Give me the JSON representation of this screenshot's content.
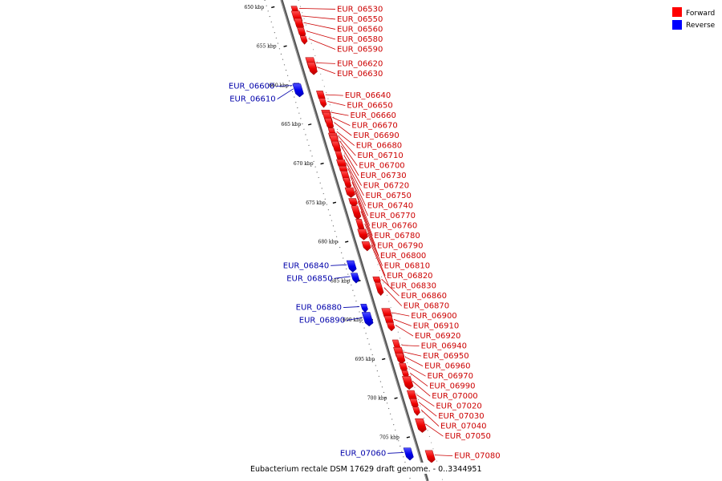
{
  "caption": "Eubacterium rectale DSM 17629 draft genome. - 0..3344951",
  "legend": [
    {
      "label": "Forward",
      "color": "#ff0000"
    },
    {
      "label": "Reverse",
      "color": "#0000ff"
    }
  ],
  "axis": {
    "unit": "kbp",
    "ticks": [
      {
        "label": "650 kbp",
        "pos": 650
      },
      {
        "label": "655 kbp",
        "pos": 655
      },
      {
        "label": "660 kbp",
        "pos": 660
      },
      {
        "label": "665 kbp",
        "pos": 665
      },
      {
        "label": "670 kbp",
        "pos": 670
      },
      {
        "label": "675 kbp",
        "pos": 675
      },
      {
        "label": "680 kbp",
        "pos": 680
      },
      {
        "label": "685 kbp",
        "pos": 685
      },
      {
        "label": "690 kbp",
        "pos": 690
      },
      {
        "label": "695 kbp",
        "pos": 695
      },
      {
        "label": "700 kbp",
        "pos": 700
      },
      {
        "label": "705 kbp",
        "pos": 705
      }
    ]
  },
  "genes": [
    {
      "name": "EUR_06530",
      "strand": "+",
      "pos": 650.6
    },
    {
      "name": "EUR_06550",
      "strand": "+",
      "pos": 651.5
    },
    {
      "name": "EUR_06560",
      "strand": "+",
      "pos": 652.3
    },
    {
      "name": "EUR_06580",
      "strand": "+",
      "pos": 653.3
    },
    {
      "name": "EUR_06590",
      "strand": "+",
      "pos": 654.2
    },
    {
      "name": "EUR_06620",
      "strand": "+",
      "pos": 657.1
    },
    {
      "name": "EUR_06630",
      "strand": "+",
      "pos": 657.6
    },
    {
      "name": "EUR_06600",
      "strand": "-",
      "pos": 659.8
    },
    {
      "name": "EUR_06610",
      "strand": "-",
      "pos": 660.2
    },
    {
      "name": "EUR_06640",
      "strand": "+",
      "pos": 660.9
    },
    {
      "name": "EUR_06650",
      "strand": "+",
      "pos": 661.7
    },
    {
      "name": "EUR_06660",
      "strand": "+",
      "pos": 663.0
    },
    {
      "name": "EUR_06670",
      "strand": "+",
      "pos": 663.6
    },
    {
      "name": "EUR_06690",
      "strand": "+",
      "pos": 664.2
    },
    {
      "name": "EUR_06680",
      "strand": "+",
      "pos": 665.3
    },
    {
      "name": "EUR_06710",
      "strand": "+",
      "pos": 665.8
    },
    {
      "name": "EUR_06700",
      "strand": "+",
      "pos": 666.4
    },
    {
      "name": "EUR_06730",
      "strand": "+",
      "pos": 667.0
    },
    {
      "name": "EUR_06720",
      "strand": "+",
      "pos": 668.1
    },
    {
      "name": "EUR_06750",
      "strand": "+",
      "pos": 669.0
    },
    {
      "name": "EUR_06740",
      "strand": "+",
      "pos": 669.7
    },
    {
      "name": "EUR_06770",
      "strand": "+",
      "pos": 670.6
    },
    {
      "name": "EUR_06760",
      "strand": "+",
      "pos": 671.3
    },
    {
      "name": "EUR_06780",
      "strand": "+",
      "pos": 672.4
    },
    {
      "name": "EUR_06790",
      "strand": "+",
      "pos": 673.6
    },
    {
      "name": "EUR_06800",
      "strand": "+",
      "pos": 674.8
    },
    {
      "name": "EUR_06810",
      "strand": "+",
      "pos": 676.3
    },
    {
      "name": "EUR_06820",
      "strand": "+",
      "pos": 677.4
    },
    {
      "name": "EUR_06830",
      "strand": "+",
      "pos": 678.8
    },
    {
      "name": "EUR_06840",
      "strand": "-",
      "pos": 681.2
    },
    {
      "name": "EUR_06850",
      "strand": "-",
      "pos": 682.6
    },
    {
      "name": "EUR_06860",
      "strand": "+",
      "pos": 682.9
    },
    {
      "name": "EUR_06870",
      "strand": "+",
      "pos": 683.9
    },
    {
      "name": "EUR_06880",
      "strand": "-",
      "pos": 686.2
    },
    {
      "name": "EUR_06890",
      "strand": "-",
      "pos": 687.5
    },
    {
      "name": "EUR_06900",
      "strand": "+",
      "pos": 686.9
    },
    {
      "name": "EUR_06910",
      "strand": "+",
      "pos": 687.7
    },
    {
      "name": "EUR_06920",
      "strand": "+",
      "pos": 688.4
    },
    {
      "name": "EUR_06940",
      "strand": "+",
      "pos": 690.8
    },
    {
      "name": "EUR_06950",
      "strand": "+",
      "pos": 691.6
    },
    {
      "name": "EUR_06960",
      "strand": "+",
      "pos": 692.2
    },
    {
      "name": "EUR_06970",
      "strand": "+",
      "pos": 693.3
    },
    {
      "name": "EUR_06990",
      "strand": "+",
      "pos": 694.1
    },
    {
      "name": "EUR_07000",
      "strand": "+",
      "pos": 695.1
    },
    {
      "name": "EUR_07020",
      "strand": "+",
      "pos": 696.7
    },
    {
      "name": "EUR_07030",
      "strand": "+",
      "pos": 697.6
    },
    {
      "name": "EUR_07040",
      "strand": "+",
      "pos": 698.5
    },
    {
      "name": "EUR_07050",
      "strand": "+",
      "pos": 700.2
    },
    {
      "name": "EUR_07060",
      "strand": "-",
      "pos": 703.6
    },
    {
      "name": "EUR_07080",
      "strand": "+",
      "pos": 703.9
    }
  ]
}
